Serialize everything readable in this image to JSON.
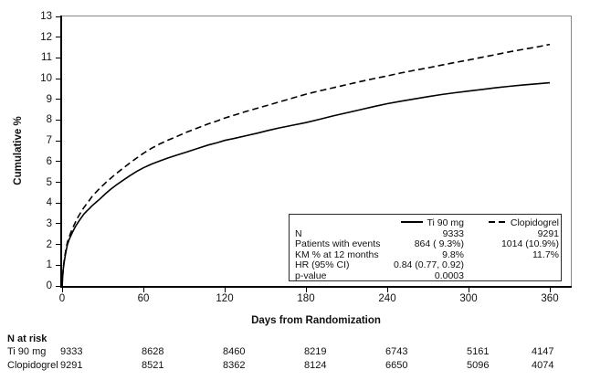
{
  "chart_data": {
    "type": "line",
    "title": "",
    "xlabel": "Days from Randomization",
    "ylabel": "Cumulative %",
    "xlim": [
      0,
      375
    ],
    "ylim": [
      0,
      13
    ],
    "x_ticks": [
      "0",
      "60",
      "120",
      "180",
      "240",
      "300",
      "360"
    ],
    "x_tick_values": [
      0,
      60,
      120,
      180,
      240,
      300,
      360
    ],
    "y_ticks": [
      "0",
      "1",
      "2",
      "3",
      "4",
      "5",
      "6",
      "7",
      "8",
      "9",
      "10",
      "11",
      "12",
      "13"
    ],
    "y_tick_values": [
      0,
      1,
      2,
      3,
      4,
      5,
      6,
      7,
      8,
      9,
      10,
      11,
      12,
      13
    ],
    "grid": false,
    "legend_position": "inside-lower-right",
    "series": [
      {
        "name": "Clopidogrel",
        "style": "dashed",
        "km_12mo_pct": 11.7,
        "points": [
          [
            0,
            0
          ],
          [
            0.5,
            0.55
          ],
          [
            1,
            0.95
          ],
          [
            1.5,
            1.2
          ],
          [
            2,
            1.45
          ],
          [
            3,
            1.85
          ],
          [
            4,
            2.12
          ],
          [
            5,
            2.32
          ],
          [
            6,
            2.5
          ],
          [
            7,
            2.66
          ],
          [
            8,
            2.82
          ],
          [
            10,
            3.1
          ],
          [
            12,
            3.35
          ],
          [
            14,
            3.57
          ],
          [
            16,
            3.77
          ],
          [
            18,
            3.95
          ],
          [
            20,
            4.12
          ],
          [
            22,
            4.3
          ],
          [
            25,
            4.52
          ],
          [
            28,
            4.72
          ],
          [
            32,
            4.97
          ],
          [
            36,
            5.2
          ],
          [
            40,
            5.42
          ],
          [
            45,
            5.68
          ],
          [
            50,
            5.93
          ],
          [
            55,
            6.17
          ],
          [
            60,
            6.4
          ],
          [
            66,
            6.64
          ],
          [
            72,
            6.85
          ],
          [
            78,
            7.03
          ],
          [
            85,
            7.22
          ],
          [
            92,
            7.42
          ],
          [
            100,
            7.62
          ],
          [
            108,
            7.82
          ],
          [
            115,
            7.97
          ],
          [
            120,
            8.1
          ],
          [
            128,
            8.26
          ],
          [
            136,
            8.42
          ],
          [
            144,
            8.57
          ],
          [
            152,
            8.72
          ],
          [
            160,
            8.87
          ],
          [
            170,
            9.06
          ],
          [
            180,
            9.25
          ],
          [
            190,
            9.41
          ],
          [
            200,
            9.56
          ],
          [
            210,
            9.71
          ],
          [
            220,
            9.86
          ],
          [
            230,
            10.0
          ],
          [
            240,
            10.13
          ],
          [
            250,
            10.27
          ],
          [
            260,
            10.4
          ],
          [
            270,
            10.52
          ],
          [
            280,
            10.65
          ],
          [
            290,
            10.78
          ],
          [
            300,
            10.9
          ],
          [
            310,
            11.03
          ],
          [
            320,
            11.16
          ],
          [
            330,
            11.29
          ],
          [
            340,
            11.41
          ],
          [
            350,
            11.52
          ],
          [
            360,
            11.65
          ]
        ]
      },
      {
        "name": "Ti 90 mg",
        "style": "solid",
        "km_12mo_pct": 9.8,
        "points": [
          [
            0,
            0
          ],
          [
            0.5,
            0.5
          ],
          [
            1,
            0.9
          ],
          [
            1.5,
            1.12
          ],
          [
            2,
            1.35
          ],
          [
            3,
            1.72
          ],
          [
            4,
            2.0
          ],
          [
            5,
            2.2
          ],
          [
            6,
            2.36
          ],
          [
            7,
            2.5
          ],
          [
            8,
            2.64
          ],
          [
            10,
            2.88
          ],
          [
            12,
            3.09
          ],
          [
            14,
            3.28
          ],
          [
            16,
            3.46
          ],
          [
            18,
            3.6
          ],
          [
            20,
            3.73
          ],
          [
            22,
            3.86
          ],
          [
            25,
            4.03
          ],
          [
            28,
            4.2
          ],
          [
            32,
            4.45
          ],
          [
            36,
            4.67
          ],
          [
            40,
            4.87
          ],
          [
            45,
            5.1
          ],
          [
            50,
            5.32
          ],
          [
            55,
            5.52
          ],
          [
            60,
            5.7
          ],
          [
            66,
            5.88
          ],
          [
            72,
            6.03
          ],
          [
            78,
            6.17
          ],
          [
            85,
            6.32
          ],
          [
            92,
            6.46
          ],
          [
            100,
            6.63
          ],
          [
            108,
            6.8
          ],
          [
            115,
            6.92
          ],
          [
            120,
            7.02
          ],
          [
            128,
            7.13
          ],
          [
            136,
            7.25
          ],
          [
            144,
            7.37
          ],
          [
            152,
            7.5
          ],
          [
            160,
            7.62
          ],
          [
            170,
            7.75
          ],
          [
            180,
            7.88
          ],
          [
            190,
            8.04
          ],
          [
            200,
            8.2
          ],
          [
            210,
            8.35
          ],
          [
            220,
            8.5
          ],
          [
            230,
            8.65
          ],
          [
            240,
            8.79
          ],
          [
            250,
            8.91
          ],
          [
            260,
            9.02
          ],
          [
            270,
            9.13
          ],
          [
            280,
            9.23
          ],
          [
            290,
            9.32
          ],
          [
            300,
            9.4
          ],
          [
            310,
            9.48
          ],
          [
            320,
            9.56
          ],
          [
            330,
            9.63
          ],
          [
            340,
            9.69
          ],
          [
            350,
            9.75
          ],
          [
            360,
            9.8
          ]
        ]
      }
    ],
    "legend_stats": {
      "key_ti": "Ti 90 mg",
      "key_clop": "Clopidogrel",
      "rows": [
        {
          "label": "N",
          "ti": "9333",
          "clop": "9291"
        },
        {
          "label": "Patients with events",
          "ti": "864 ( 9.3%)",
          "clop": "1014 (10.9%)"
        },
        {
          "label": "KM % at 12 months",
          "ti": "9.8%",
          "clop": "11.7%"
        },
        {
          "label": "HR (95% CI)",
          "ti": "0.84 (0.77, 0.92)",
          "clop": ""
        },
        {
          "label": "p-value",
          "ti": "0.0003",
          "clop": ""
        }
      ]
    },
    "risk_table": {
      "title": "N at risk",
      "rows": [
        {
          "label": "Ti 90 mg",
          "values": [
            "9333",
            "8628",
            "8460",
            "8219",
            "6743",
            "5161",
            "4147"
          ]
        },
        {
          "label": "Clopidogrel",
          "values": [
            "9291",
            "8521",
            "8362",
            "8124",
            "6650",
            "5096",
            "4074"
          ]
        }
      ]
    },
    "colors": {
      "line": "#000000",
      "frame": "#8a8a8a",
      "background": "#ffffff",
      "text": "#111111"
    }
  }
}
